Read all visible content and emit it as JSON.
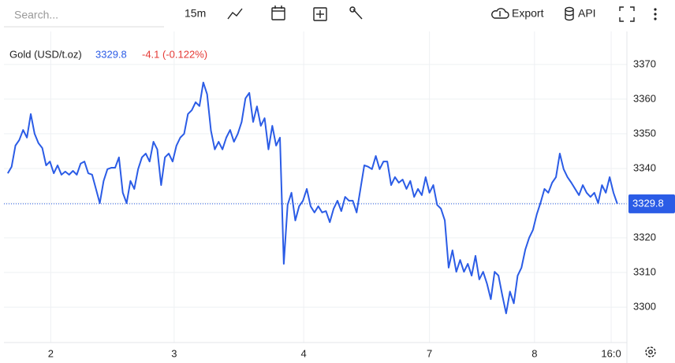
{
  "toolbar": {
    "search_placeholder": "Search...",
    "interval": "15m",
    "export": "Export",
    "api": "API"
  },
  "chart_data": {
    "type": "line",
    "title": "Gold (USD/t.oz)",
    "change_label": "-4.1 (-0.122%)",
    "series": [
      {
        "name": "Gold (USD/t.oz)",
        "color": "#2b5ce6",
        "values": [
          3338.6,
          3340.5,
          3346.6,
          3348.2,
          3351.1,
          3348.9,
          3355.7,
          3350,
          3347.3,
          3345.9,
          3340.9,
          3342,
          3338.6,
          3340.9,
          3338.2,
          3339.1,
          3338.2,
          3339.3,
          3338.2,
          3341.4,
          3342,
          3338.6,
          3338.2,
          3334.1,
          3330,
          3336.4,
          3339.8,
          3340.2,
          3340.2,
          3343.2,
          3333,
          3330,
          3336.4,
          3334.1,
          3339.8,
          3343.2,
          3344.3,
          3342,
          3347.7,
          3345.5,
          3335.2,
          3343.2,
          3344.3,
          3342,
          3346.6,
          3348.9,
          3350,
          3355.7,
          3356.8,
          3359.1,
          3358,
          3364.8,
          3361.4,
          3350.9,
          3345.5,
          3347.7,
          3345.5,
          3348.9,
          3351.1,
          3347.7,
          3350,
          3353.4,
          3360.2,
          3361.8,
          3353.4,
          3357.9,
          3352.3,
          3354.5,
          3345.5,
          3352.3,
          3346.6,
          3348.9,
          3312.5,
          3329.5,
          3333,
          3325,
          3329.1,
          3330.7,
          3334.1,
          3329.1,
          3327.3,
          3329.1,
          3327.3,
          3327.7,
          3324.5,
          3328.4,
          3330.7,
          3327.7,
          3331.8,
          3330.7,
          3330.7,
          3327.3,
          3334.1,
          3340.9,
          3340.5,
          3339.8,
          3343.6,
          3339.8,
          3342,
          3342,
          3335.2,
          3337.5,
          3335.9,
          3336.8,
          3334.1,
          3336.4,
          3331.8,
          3334.1,
          3332.3,
          3337.5,
          3333,
          3335.2,
          3329.5,
          3328.4,
          3325,
          3311.4,
          3316.4,
          3310.2,
          3313.6,
          3310.2,
          3312.5,
          3309.1,
          3314.8,
          3308,
          3310.2,
          3306.8,
          3302.3,
          3310.2,
          3309.1,
          3303.4,
          3298.2,
          3304.5,
          3301.1,
          3309.1,
          3311.4,
          3316.6,
          3320,
          3322.3,
          3326.8,
          3330.2,
          3334.1,
          3333,
          3335.9,
          3337.5,
          3344.3,
          3339.8,
          3337.5,
          3335.9,
          3334.1,
          3332.3,
          3335.2,
          3333,
          3331.8,
          3333,
          3330,
          3335.2,
          3333,
          3337.5,
          3333,
          3329.8
        ]
      }
    ],
    "xlim": [
      -1,
      161.5
    ],
    "xticks": [
      {
        "value": 11.2,
        "label": "2"
      },
      {
        "value": 43.4,
        "label": "3"
      },
      {
        "value": 77.2,
        "label": "4"
      },
      {
        "value": 110,
        "label": "7"
      },
      {
        "value": 137.4,
        "label": "8"
      },
      {
        "value": 157.4,
        "label": "16:0"
      }
    ],
    "ylim": [
      3289.8,
      3379.5
    ],
    "yticks": [
      3300,
      3310,
      3320,
      3330,
      3340,
      3350,
      3360,
      3370
    ],
    "grid": true
  }
}
